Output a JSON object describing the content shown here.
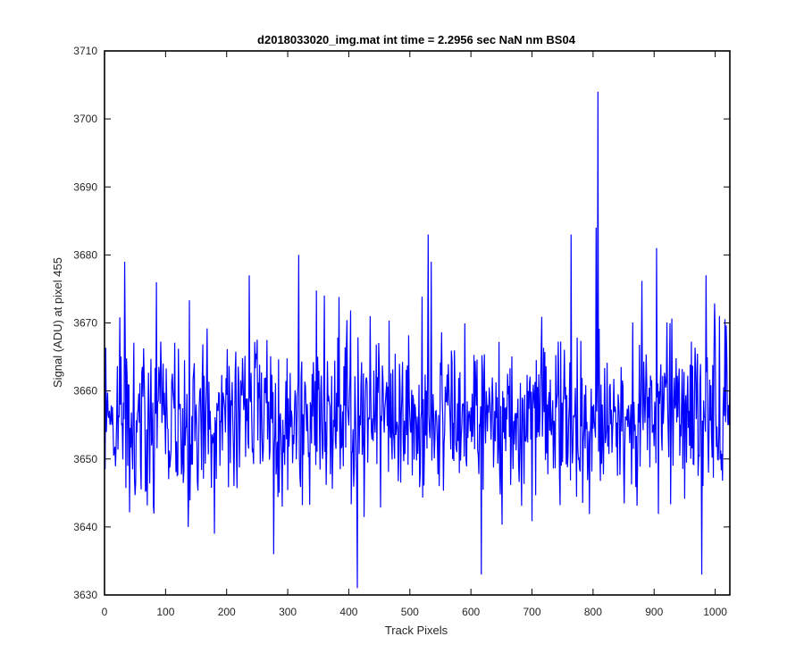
{
  "chart_data": {
    "type": "line",
    "title": "d2018033020_img.mat int time = 2.2956 sec  NaN nm BS04",
    "xlabel": "Track Pixels",
    "ylabel": "Signal (ADU) at pixel 455",
    "xlim": [
      0,
      1024
    ],
    "ylim": [
      3630,
      3710
    ],
    "x_ticks": [
      "0",
      "100",
      "200",
      "300",
      "400",
      "500",
      "600",
      "700",
      "800",
      "900",
      "1000"
    ],
    "y_ticks": [
      "3630",
      "3640",
      "3650",
      "3660",
      "3670",
      "3680",
      "3690",
      "3700",
      "3710"
    ],
    "grid": false,
    "series": [
      {
        "color": "#0000ff",
        "x_start": 1,
        "x_step": 1,
        "noise_level": 3656,
        "noise_range": [
          3643,
          3668
        ],
        "values_landmarks": [
          {
            "x": 33,
            "y": 3679
          },
          {
            "x": 85,
            "y": 3676
          },
          {
            "x": 137,
            "y": 3640
          },
          {
            "x": 180,
            "y": 3639
          },
          {
            "x": 237,
            "y": 3677
          },
          {
            "x": 277,
            "y": 3636
          },
          {
            "x": 318,
            "y": 3680
          },
          {
            "x": 414,
            "y": 3631
          },
          {
            "x": 530,
            "y": 3683
          },
          {
            "x": 535,
            "y": 3679
          },
          {
            "x": 617,
            "y": 3633
          },
          {
            "x": 764,
            "y": 3683
          },
          {
            "x": 805,
            "y": 3684
          },
          {
            "x": 808,
            "y": 3704
          },
          {
            "x": 904,
            "y": 3681
          },
          {
            "x": 978,
            "y": 3633
          },
          {
            "x": 985,
            "y": 3677
          }
        ]
      }
    ]
  }
}
